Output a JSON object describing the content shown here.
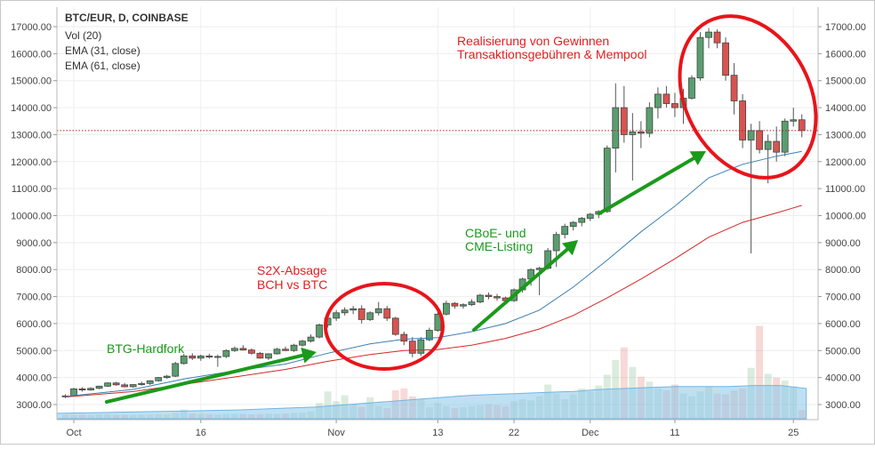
{
  "header": {
    "symbol": "BTC/EUR, D, COINBASE",
    "studies": [
      "Vol (20)",
      "EMA (31, close)",
      "EMA (61, close)"
    ]
  },
  "annotations": [
    {
      "name": "btg-hardfork",
      "lines": [
        "BTG-Hardfork"
      ],
      "color": "#1a9a1a"
    },
    {
      "name": "s2x-absage",
      "lines": [
        "S2X-Absage",
        "BCH vs BTC"
      ],
      "color": "#e02020"
    },
    {
      "name": "cboe-cme",
      "lines": [
        "CBoE- und",
        "CME-Listing"
      ],
      "color": "#1a9a1a"
    },
    {
      "name": "gewinne",
      "lines": [
        "Realisierung von Gewinnen",
        "Transaktionsgebühren & Mempool"
      ],
      "color": "#e02020"
    }
  ],
  "colors": {
    "up": "#5a9e6f",
    "down": "#d9534f",
    "ema31": "#3a7fb5",
    "ema61": "#d62728",
    "volume": "#8ac6ea",
    "arrow": "#1a9a1a",
    "circle": "#e8141a",
    "priceLine": "#b22222"
  },
  "chart_data": {
    "type": "candlestick",
    "title": "BTC/EUR, D, COINBASE",
    "x_labels": [
      {
        "day": 1,
        "label": "Oct"
      },
      {
        "day": 16,
        "label": "16"
      },
      {
        "day": 32,
        "label": "Nov"
      },
      {
        "day": 44,
        "label": "13"
      },
      {
        "day": 53,
        "label": "22"
      },
      {
        "day": 62,
        "label": "Dec"
      },
      {
        "day": 72,
        "label": "11"
      },
      {
        "day": 86,
        "label": "25"
      }
    ],
    "y_ticks": [
      "3000.00",
      "4000.00",
      "5000.00",
      "6000.00",
      "7000.00",
      "8000.00",
      "9000.00",
      "10000.00",
      "11000.00",
      "12000.00",
      "13000.00",
      "14000.00",
      "15000.00",
      "16000.00",
      "17000.00"
    ],
    "ylim": [
      2600,
      17400
    ],
    "last_price_line": 13150,
    "candles": [
      {
        "day": 0,
        "o": 3300,
        "h": 3380,
        "l": 3240,
        "c": 3320
      },
      {
        "day": 1,
        "o": 3320,
        "h": 3620,
        "l": 3290,
        "c": 3580
      },
      {
        "day": 2,
        "o": 3580,
        "h": 3640,
        "l": 3480,
        "c": 3540
      },
      {
        "day": 3,
        "o": 3540,
        "h": 3640,
        "l": 3510,
        "c": 3600
      },
      {
        "day": 4,
        "o": 3600,
        "h": 3700,
        "l": 3570,
        "c": 3680
      },
      {
        "day": 5,
        "o": 3680,
        "h": 3820,
        "l": 3650,
        "c": 3800
      },
      {
        "day": 6,
        "o": 3800,
        "h": 3840,
        "l": 3700,
        "c": 3730
      },
      {
        "day": 7,
        "o": 3730,
        "h": 3800,
        "l": 3640,
        "c": 3660
      },
      {
        "day": 8,
        "o": 3660,
        "h": 3760,
        "l": 3620,
        "c": 3740
      },
      {
        "day": 9,
        "o": 3740,
        "h": 3850,
        "l": 3700,
        "c": 3780
      },
      {
        "day": 10,
        "o": 3780,
        "h": 3900,
        "l": 3730,
        "c": 3880
      },
      {
        "day": 11,
        "o": 3880,
        "h": 4020,
        "l": 3850,
        "c": 4000
      },
      {
        "day": 12,
        "o": 4000,
        "h": 4100,
        "l": 3950,
        "c": 4050
      },
      {
        "day": 13,
        "o": 4050,
        "h": 4580,
        "l": 4020,
        "c": 4520
      },
      {
        "day": 14,
        "o": 4520,
        "h": 4880,
        "l": 4480,
        "c": 4800
      },
      {
        "day": 15,
        "o": 4800,
        "h": 4900,
        "l": 4650,
        "c": 4720
      },
      {
        "day": 16,
        "o": 4720,
        "h": 4850,
        "l": 4620,
        "c": 4800
      },
      {
        "day": 17,
        "o": 4800,
        "h": 4880,
        "l": 4700,
        "c": 4760
      },
      {
        "day": 18,
        "o": 4760,
        "h": 4850,
        "l": 4400,
        "c": 4780
      },
      {
        "day": 19,
        "o": 4780,
        "h": 5050,
        "l": 4720,
        "c": 5000
      },
      {
        "day": 20,
        "o": 5000,
        "h": 5150,
        "l": 4950,
        "c": 5080
      },
      {
        "day": 21,
        "o": 5080,
        "h": 5200,
        "l": 5000,
        "c": 5020
      },
      {
        "day": 22,
        "o": 5020,
        "h": 5080,
        "l": 4850,
        "c": 4900
      },
      {
        "day": 23,
        "o": 4900,
        "h": 4950,
        "l": 4700,
        "c": 4720
      },
      {
        "day": 24,
        "o": 4720,
        "h": 4900,
        "l": 4650,
        "c": 4880
      },
      {
        "day": 25,
        "o": 4880,
        "h": 5100,
        "l": 4850,
        "c": 5050
      },
      {
        "day": 26,
        "o": 5050,
        "h": 5150,
        "l": 4980,
        "c": 5000
      },
      {
        "day": 27,
        "o": 5000,
        "h": 5250,
        "l": 4950,
        "c": 5200
      },
      {
        "day": 28,
        "o": 5200,
        "h": 5400,
        "l": 5150,
        "c": 5350
      },
      {
        "day": 29,
        "o": 5350,
        "h": 5600,
        "l": 5300,
        "c": 5500
      },
      {
        "day": 30,
        "o": 5500,
        "h": 6000,
        "l": 5450,
        "c": 5950
      },
      {
        "day": 31,
        "o": 5950,
        "h": 6300,
        "l": 5850,
        "c": 6200
      },
      {
        "day": 32,
        "o": 6200,
        "h": 6500,
        "l": 6100,
        "c": 6400
      },
      {
        "day": 33,
        "o": 6400,
        "h": 6600,
        "l": 6300,
        "c": 6500
      },
      {
        "day": 34,
        "o": 6500,
        "h": 6650,
        "l": 6350,
        "c": 6550
      },
      {
        "day": 35,
        "o": 6550,
        "h": 6680,
        "l": 6000,
        "c": 6150
      },
      {
        "day": 36,
        "o": 6150,
        "h": 6450,
        "l": 6100,
        "c": 6400
      },
      {
        "day": 37,
        "o": 6400,
        "h": 6800,
        "l": 6300,
        "c": 6550
      },
      {
        "day": 38,
        "o": 6550,
        "h": 6650,
        "l": 6100,
        "c": 6200
      },
      {
        "day": 39,
        "o": 6200,
        "h": 6250,
        "l": 5550,
        "c": 5600
      },
      {
        "day": 40,
        "o": 5600,
        "h": 5700,
        "l": 5200,
        "c": 5350
      },
      {
        "day": 41,
        "o": 5350,
        "h": 5500,
        "l": 4750,
        "c": 4900
      },
      {
        "day": 42,
        "o": 4900,
        "h": 5500,
        "l": 4800,
        "c": 5400
      },
      {
        "day": 43,
        "o": 5400,
        "h": 5850,
        "l": 5350,
        "c": 5750
      },
      {
        "day": 44,
        "o": 5750,
        "h": 6450,
        "l": 5700,
        "c": 6350
      },
      {
        "day": 45,
        "o": 6350,
        "h": 6850,
        "l": 6300,
        "c": 6750
      },
      {
        "day": 46,
        "o": 6750,
        "h": 6800,
        "l": 6550,
        "c": 6650
      },
      {
        "day": 47,
        "o": 6650,
        "h": 6750,
        "l": 6550,
        "c": 6700
      },
      {
        "day": 48,
        "o": 6700,
        "h": 6900,
        "l": 6650,
        "c": 6800
      },
      {
        "day": 49,
        "o": 6800,
        "h": 7100,
        "l": 6750,
        "c": 7050
      },
      {
        "day": 50,
        "o": 7050,
        "h": 7150,
        "l": 6900,
        "c": 7000
      },
      {
        "day": 51,
        "o": 7000,
        "h": 7100,
        "l": 6850,
        "c": 6950
      },
      {
        "day": 52,
        "o": 6950,
        "h": 7000,
        "l": 6800,
        "c": 6850
      },
      {
        "day": 53,
        "o": 6850,
        "h": 7300,
        "l": 6800,
        "c": 7250
      },
      {
        "day": 54,
        "o": 7250,
        "h": 7700,
        "l": 7150,
        "c": 7650
      },
      {
        "day": 55,
        "o": 7650,
        "h": 8050,
        "l": 7400,
        "c": 8000
      },
      {
        "day": 56,
        "o": 8000,
        "h": 8100,
        "l": 7050,
        "c": 8050
      },
      {
        "day": 57,
        "o": 8050,
        "h": 8800,
        "l": 8000,
        "c": 8700
      },
      {
        "day": 58,
        "o": 8700,
        "h": 9400,
        "l": 8100,
        "c": 9300
      },
      {
        "day": 59,
        "o": 9300,
        "h": 9700,
        "l": 9150,
        "c": 9600
      },
      {
        "day": 60,
        "o": 9600,
        "h": 9800,
        "l": 9450,
        "c": 9750
      },
      {
        "day": 61,
        "o": 9750,
        "h": 9950,
        "l": 9600,
        "c": 9900
      },
      {
        "day": 62,
        "o": 9900,
        "h": 10100,
        "l": 9800,
        "c": 10050
      },
      {
        "day": 63,
        "o": 10050,
        "h": 10200,
        "l": 9900,
        "c": 10150
      },
      {
        "day": 64,
        "o": 10150,
        "h": 12600,
        "l": 10100,
        "c": 12500
      },
      {
        "day": 65,
        "o": 12500,
        "h": 14900,
        "l": 11600,
        "c": 14000
      },
      {
        "day": 66,
        "o": 14000,
        "h": 14800,
        "l": 12700,
        "c": 13000
      },
      {
        "day": 67,
        "o": 13000,
        "h": 13800,
        "l": 11300,
        "c": 13100
      },
      {
        "day": 68,
        "o": 13100,
        "h": 13500,
        "l": 12500,
        "c": 13050
      },
      {
        "day": 69,
        "o": 13050,
        "h": 14200,
        "l": 12900,
        "c": 14000
      },
      {
        "day": 70,
        "o": 14000,
        "h": 14750,
        "l": 13600,
        "c": 14500
      },
      {
        "day": 71,
        "o": 14500,
        "h": 14800,
        "l": 14000,
        "c": 14150
      },
      {
        "day": 72,
        "o": 14150,
        "h": 14550,
        "l": 13650,
        "c": 14000
      },
      {
        "day": 73,
        "o": 14000,
        "h": 14700,
        "l": 13400,
        "c": 14350
      },
      {
        "day": 74,
        "o": 14350,
        "h": 15200,
        "l": 14300,
        "c": 15100
      },
      {
        "day": 75,
        "o": 15100,
        "h": 16800,
        "l": 15000,
        "c": 16600
      },
      {
        "day": 76,
        "o": 16600,
        "h": 16950,
        "l": 16200,
        "c": 16800
      },
      {
        "day": 77,
        "o": 16800,
        "h": 16900,
        "l": 16200,
        "c": 16400
      },
      {
        "day": 78,
        "o": 16400,
        "h": 16600,
        "l": 15000,
        "c": 15200
      },
      {
        "day": 79,
        "o": 15200,
        "h": 15650,
        "l": 13750,
        "c": 14250
      },
      {
        "day": 80,
        "o": 14250,
        "h": 14500,
        "l": 12500,
        "c": 12800
      },
      {
        "day": 81,
        "o": 12800,
        "h": 13400,
        "l": 8600,
        "c": 13150
      },
      {
        "day": 82,
        "o": 13150,
        "h": 13500,
        "l": 12300,
        "c": 12450
      },
      {
        "day": 83,
        "o": 12450,
        "h": 13000,
        "l": 11200,
        "c": 12750
      },
      {
        "day": 84,
        "o": 12750,
        "h": 13300,
        "l": 12000,
        "c": 12350
      },
      {
        "day": 85,
        "o": 12350,
        "h": 13600,
        "l": 12200,
        "c": 13500
      },
      {
        "day": 86,
        "o": 13500,
        "h": 14000,
        "l": 13300,
        "c": 13550
      },
      {
        "day": 87,
        "o": 13550,
        "h": 13750,
        "l": 12900,
        "c": 13150
      }
    ],
    "ema31": [
      [
        0,
        3300
      ],
      [
        8,
        3560
      ],
      [
        14,
        3950
      ],
      [
        20,
        4250
      ],
      [
        26,
        4500
      ],
      [
        31,
        4900
      ],
      [
        36,
        5250
      ],
      [
        40,
        5420
      ],
      [
        44,
        5480
      ],
      [
        48,
        5700
      ],
      [
        52,
        6000
      ],
      [
        56,
        6500
      ],
      [
        60,
        7350
      ],
      [
        64,
        8350
      ],
      [
        68,
        9400
      ],
      [
        72,
        10350
      ],
      [
        76,
        11400
      ],
      [
        80,
        11900
      ],
      [
        84,
        12200
      ],
      [
        87,
        12380
      ]
    ],
    "ema61": [
      [
        0,
        3280
      ],
      [
        8,
        3480
      ],
      [
        14,
        3750
      ],
      [
        20,
        4020
      ],
      [
        26,
        4300
      ],
      [
        31,
        4600
      ],
      [
        36,
        4850
      ],
      [
        40,
        5000
      ],
      [
        44,
        5040
      ],
      [
        48,
        5200
      ],
      [
        52,
        5450
      ],
      [
        56,
        5800
      ],
      [
        60,
        6300
      ],
      [
        64,
        6950
      ],
      [
        68,
        7650
      ],
      [
        72,
        8400
      ],
      [
        76,
        9200
      ],
      [
        80,
        9750
      ],
      [
        84,
        10100
      ],
      [
        87,
        10380
      ]
    ],
    "volume": [
      0.42,
      0.4,
      0.43,
      0.38,
      0.45,
      0.44,
      0.4,
      0.41,
      0.39,
      0.42,
      0.44,
      0.45,
      0.46,
      0.6,
      0.95,
      0.55,
      0.5,
      0.48,
      0.45,
      0.5,
      0.52,
      0.5,
      0.46,
      0.48,
      0.52,
      0.5,
      0.55,
      0.6,
      0.62,
      0.75,
      1.6,
      2.8,
      1.8,
      2.4,
      1.5,
      1.2,
      2.2,
      1.3,
      1.1,
      2.9,
      3.1,
      2.3,
      2.0,
      1.2,
      1.6,
      1.3,
      1.1,
      1.2,
      1.3,
      1.4,
      1.5,
      1.4,
      1.3,
      1.8,
      2.0,
      1.9,
      2.3,
      3.5,
      2.6,
      2.0,
      2.5,
      3.1,
      2.8,
      3.4,
      4.5,
      6.0,
      7.3,
      5.3,
      4.3,
      3.8,
      3.1,
      2.9,
      3.5,
      2.6,
      2.3,
      2.8,
      3.3,
      2.6,
      2.5,
      2.9,
      3.1,
      5.2,
      9.5,
      4.6,
      4.2,
      3.9,
      3.3,
      0.9
    ],
    "volume_ma": [
      0.55,
      0.6,
      0.65,
      0.7,
      0.75,
      0.8,
      0.85,
      0.9,
      1.0,
      1.1,
      1.2,
      1.4,
      1.6,
      1.8,
      2.0,
      2.2,
      2.4,
      2.5,
      2.6,
      2.7,
      2.8,
      3.0,
      3.1,
      3.2,
      3.3,
      3.3,
      3.3,
      3.4,
      3.4,
      3.1
    ]
  }
}
